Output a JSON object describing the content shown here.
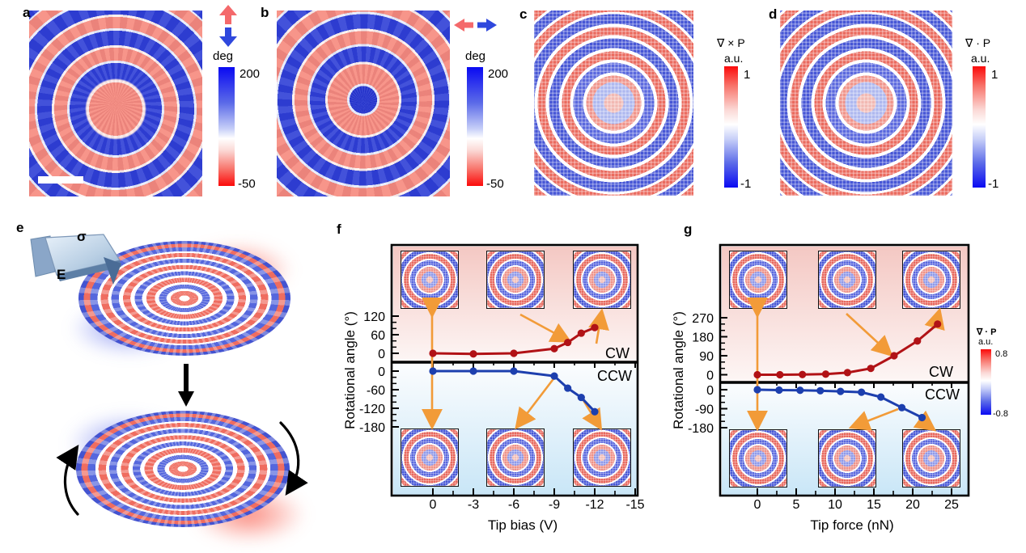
{
  "figure": {
    "panels": {
      "a": {
        "label": "a",
        "icon": "vertical-double-arrow-red-up-blue-down",
        "colorbar": {
          "title": "deg",
          "max": "200",
          "min": "-50"
        }
      },
      "b": {
        "label": "b",
        "icon": "horizontal-double-arrow-red-left-blue-right",
        "colorbar": {
          "title": "deg",
          "max": "200",
          "min": "-50"
        }
      },
      "c": {
        "label": "c",
        "colorbar": {
          "title": "∇ × P",
          "units": "a.u.",
          "max": "1",
          "min": "-1"
        }
      },
      "d": {
        "label": "d",
        "colorbar": {
          "title": "∇ · P",
          "units": "a.u.",
          "max": "1",
          "min": "-1"
        }
      },
      "e": {
        "label": "e",
        "stress_label": "σ",
        "field_label": "E"
      },
      "f": {
        "label": "f"
      },
      "g": {
        "label": "g",
        "colorbar": {
          "title": "∇ · P",
          "units": "a.u.",
          "max": "0.8",
          "min": "-0.8"
        }
      }
    },
    "colors": {
      "cw_curve": "#b11216",
      "ccw_curve": "#1d3fae",
      "arrow_orange": "#f29b38",
      "positive_red": "#fb0a0a",
      "negative_blue": "#0a0af2"
    }
  },
  "chart_data": [
    {
      "id": "f",
      "type": "line",
      "title": "",
      "xlabel": "Tip bias (V)",
      "ylabel": "Rotational angle (°)",
      "x_ticks": [
        0,
        -3,
        -6,
        -9,
        -12,
        -15
      ],
      "y_ticks_upper": [
        120,
        60,
        0
      ],
      "y_ticks_lower": [
        0,
        -60,
        -120,
        -180
      ],
      "xlim": [
        1.5,
        -16.5
      ],
      "ylim_upper": [
        0,
        350
      ],
      "ylim_lower": [
        0,
        -430
      ],
      "grid": false,
      "region_labels": {
        "upper": "CW",
        "lower": "CCW"
      },
      "series": [
        {
          "name": "CW",
          "color": "#b11216",
          "x": [
            0,
            -3,
            -6,
            -9,
            -10,
            -11,
            -12
          ],
          "y": [
            0,
            -2,
            0,
            15,
            35,
            65,
            83
          ]
        },
        {
          "name": "CCW",
          "color": "#1d3fae",
          "x": [
            0,
            -3,
            -6,
            -9,
            -10,
            -11,
            -12
          ],
          "y": [
            0,
            0,
            0,
            -16,
            -55,
            -85,
            -131
          ]
        }
      ]
    },
    {
      "id": "g",
      "type": "line",
      "title": "",
      "xlabel": "Tip force (nN)",
      "ylabel": "Rotational angle (°)",
      "x_ticks": [
        0,
        5,
        10,
        15,
        20,
        25
      ],
      "y_ticks_upper": [
        270,
        180,
        90,
        0
      ],
      "y_ticks_lower": [
        0,
        -90,
        -180
      ],
      "xlim": [
        -2.5,
        27.5
      ],
      "ylim_upper": [
        0,
        615
      ],
      "ylim_lower": [
        0,
        -535
      ],
      "grid": false,
      "region_labels": {
        "upper": "CW",
        "lower": "CCW"
      },
      "series": [
        {
          "name": "CW",
          "color": "#b11216",
          "x": [
            0,
            2.9,
            5.8,
            8.8,
            11.6,
            14.6,
            17.6,
            20.6,
            23.2
          ],
          "y": [
            0,
            0,
            1,
            3,
            10,
            30,
            90,
            160,
            240
          ]
        },
        {
          "name": "CCW",
          "color": "#1d3fae",
          "x": [
            0,
            2.8,
            5.5,
            8.1,
            10.7,
            13.4,
            15.9,
            18.6,
            21.2
          ],
          "y": [
            0,
            -2,
            -3,
            -5,
            -8,
            -12,
            -35,
            -85,
            -132
          ]
        }
      ]
    }
  ]
}
